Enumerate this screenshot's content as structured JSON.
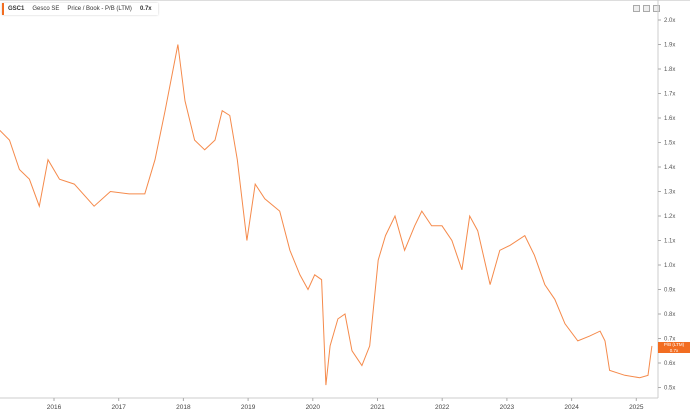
{
  "header": {
    "ticker": "GSC1",
    "company": "Gesco SE",
    "metric": "Price / Book - P/B (LTM)",
    "value": "0.7x"
  },
  "icons": [
    "restore-icon",
    "maximize-icon",
    "fullscreen-icon"
  ],
  "tag": {
    "label": "P/B (LTM)",
    "value": "0.7x"
  },
  "colors": {
    "series": "#f58a4b",
    "accent": "#f26d21"
  },
  "chart_data": {
    "type": "line",
    "ylim": [
      0.5,
      2.0
    ],
    "yticks": [
      "2.0x",
      "1.9x",
      "1.8x",
      "1.7x",
      "1.6x",
      "1.5x",
      "1.4x",
      "1.3x",
      "1.2x",
      "1.1x",
      "1.0x",
      "0.9x",
      "0.8x",
      "0.7x",
      "0.6x",
      "0.5x"
    ],
    "xticks": [
      "2016",
      "2017",
      "2018",
      "2019",
      "2020",
      "2021",
      "2022",
      "2023",
      "2024",
      "2025"
    ],
    "series": [
      {
        "name": "P/B (LTM)",
        "points": [
          [
            "2015-03-01",
            1.55
          ],
          [
            "2015-04-25",
            1.51
          ],
          [
            "2015-06-20",
            1.39
          ],
          [
            "2015-08-15",
            1.35
          ],
          [
            "2015-10-10",
            1.24
          ],
          [
            "2015-11-28",
            1.43
          ],
          [
            "2016-02-01",
            1.35
          ],
          [
            "2016-04-25",
            1.33
          ],
          [
            "2016-08-15",
            1.24
          ],
          [
            "2016-11-15",
            1.3
          ],
          [
            "2017-03-01",
            1.29
          ],
          [
            "2017-05-28",
            1.29
          ],
          [
            "2017-07-25",
            1.43
          ],
          [
            "2017-09-20",
            1.63
          ],
          [
            "2017-12-01",
            1.9
          ],
          [
            "2018-01-10",
            1.67
          ],
          [
            "2018-03-05",
            1.51
          ],
          [
            "2018-05-01",
            1.47
          ],
          [
            "2018-06-28",
            1.51
          ],
          [
            "2018-08-08",
            1.63
          ],
          [
            "2018-09-20",
            1.61
          ],
          [
            "2018-11-01",
            1.43
          ],
          [
            "2018-12-25",
            1.1
          ],
          [
            "2019-02-10",
            1.33
          ],
          [
            "2019-04-05",
            1.27
          ],
          [
            "2019-06-28",
            1.22
          ],
          [
            "2019-08-25",
            1.06
          ],
          [
            "2019-10-20",
            0.96
          ],
          [
            "2019-12-05",
            0.9
          ],
          [
            "2020-01-12",
            0.96
          ],
          [
            "2020-02-20",
            0.94
          ],
          [
            "2020-03-15",
            0.51
          ],
          [
            "2020-04-08",
            0.67
          ],
          [
            "2020-05-22",
            0.78
          ],
          [
            "2020-07-01",
            0.8
          ],
          [
            "2020-08-10",
            0.65
          ],
          [
            "2020-10-05",
            0.59
          ],
          [
            "2020-11-18",
            0.67
          ],
          [
            "2021-01-05",
            1.02
          ],
          [
            "2021-02-15",
            1.12
          ],
          [
            "2021-04-10",
            1.2
          ],
          [
            "2021-06-03",
            1.06
          ],
          [
            "2021-07-30",
            1.16
          ],
          [
            "2021-09-08",
            1.22
          ],
          [
            "2021-11-02",
            1.16
          ],
          [
            "2021-12-31",
            1.16
          ],
          [
            "2022-02-25",
            1.1
          ],
          [
            "2022-04-22",
            0.98
          ],
          [
            "2022-06-05",
            1.2
          ],
          [
            "2022-07-20",
            1.14
          ],
          [
            "2022-09-28",
            0.92
          ],
          [
            "2022-11-22",
            1.06
          ],
          [
            "2023-01-18",
            1.08
          ],
          [
            "2023-04-12",
            1.12
          ],
          [
            "2023-06-05",
            1.04
          ],
          [
            "2023-08-03",
            0.92
          ],
          [
            "2023-09-28",
            0.86
          ],
          [
            "2023-11-25",
            0.76
          ],
          [
            "2024-02-05",
            0.69
          ],
          [
            "2024-04-12",
            0.71
          ],
          [
            "2024-06-10",
            0.73
          ],
          [
            "2024-07-08",
            0.69
          ],
          [
            "2024-08-03",
            0.57
          ],
          [
            "2024-10-28",
            0.55
          ],
          [
            "2025-01-20",
            0.54
          ],
          [
            "2025-03-08",
            0.55
          ],
          [
            "2025-03-30",
            0.67
          ]
        ]
      }
    ]
  }
}
